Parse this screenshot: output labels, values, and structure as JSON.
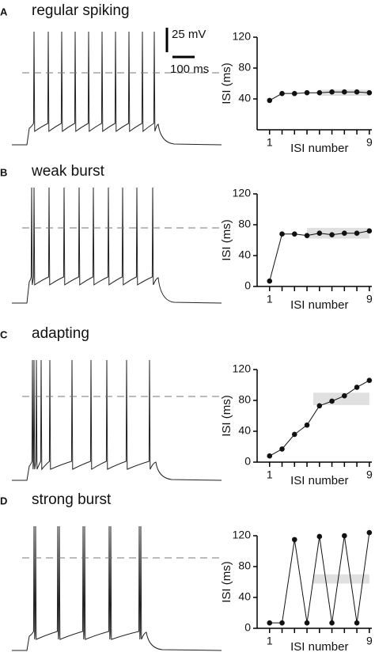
{
  "chart_data": [
    {
      "type": "line",
      "letter": "A",
      "title": "regular spiking",
      "scale_v": "25 mV",
      "scale_t": "100 ms",
      "x_label": "ISI number",
      "y_label": "ISI (ms)",
      "x": [
        1,
        2,
        3,
        4,
        5,
        6,
        7,
        8,
        9
      ],
      "series": [
        {
          "name": "ISI",
          "color": "#111111",
          "values": [
            38,
            47,
            47,
            48,
            48,
            49,
            49,
            49,
            48
          ]
        }
      ],
      "band": {
        "x": [
          5,
          9
        ],
        "y": [
          44,
          52
        ],
        "color": "#e0e0e0"
      },
      "xlim": [
        0,
        9.2
      ],
      "ylim": [
        0,
        120
      ],
      "xticks": [
        1,
        9
      ],
      "minor_xticks": [
        2,
        3,
        4,
        5,
        6,
        7,
        8
      ],
      "yticks": [
        40,
        80,
        120
      ]
    },
    {
      "type": "line",
      "letter": "B",
      "title": "weak burst",
      "x_label": "ISI number",
      "y_label": "ISI (ms)",
      "x": [
        1,
        2,
        3,
        4,
        5,
        6,
        7,
        8,
        9
      ],
      "series": [
        {
          "name": "ISI",
          "color": "#111111",
          "values": [
            7,
            68,
            68,
            66,
            69,
            67,
            69,
            69,
            72
          ]
        }
      ],
      "band": {
        "x": [
          4,
          9
        ],
        "y": [
          62,
          76
        ],
        "color": "#e0e0e0"
      },
      "xlim": [
        0,
        9.2
      ],
      "ylim": [
        0,
        120
      ],
      "xticks": [
        1,
        9
      ],
      "minor_xticks": [
        2,
        3,
        4,
        5,
        6,
        7,
        8
      ],
      "yticks": [
        0,
        40,
        80,
        120
      ]
    },
    {
      "type": "line",
      "letter": "C",
      "title": "adapting",
      "x_label": "ISI number",
      "y_label": "ISI (ms)",
      "x": [
        1,
        2,
        3,
        4,
        5,
        6,
        7,
        8,
        9
      ],
      "series": [
        {
          "name": "ISI",
          "color": "#111111",
          "values": [
            8,
            17,
            36,
            48,
            73,
            79,
            86,
            97,
            106
          ]
        }
      ],
      "band": {
        "x": [
          4.5,
          9
        ],
        "y": [
          74,
          90
        ],
        "color": "#e0e0e0"
      },
      "xlim": [
        0,
        9.2
      ],
      "ylim": [
        0,
        120
      ],
      "xticks": [
        1,
        9
      ],
      "minor_xticks": [
        2,
        3,
        4,
        5,
        6,
        7,
        8
      ],
      "yticks": [
        0,
        40,
        80,
        120
      ]
    },
    {
      "type": "line",
      "letter": "D",
      "title": "strong burst",
      "x_label": "ISI number",
      "y_label": "ISI (ms)",
      "x": [
        1,
        2,
        3,
        4,
        5,
        6,
        7,
        8,
        9
      ],
      "series": [
        {
          "name": "ISI",
          "color": "#111111",
          "values": [
            7,
            7,
            115,
            7,
            119,
            7,
            120,
            7,
            124
          ]
        }
      ],
      "band": {
        "x": [
          4.5,
          9
        ],
        "y": [
          58,
          70
        ],
        "color": "#e0e0e0"
      },
      "xlim": [
        0,
        9.2
      ],
      "ylim": [
        0,
        120
      ],
      "xticks": [
        1,
        9
      ],
      "minor_xticks": [
        2,
        3,
        4,
        5,
        6,
        7,
        8
      ],
      "yticks": [
        0,
        40,
        80,
        120
      ]
    }
  ]
}
